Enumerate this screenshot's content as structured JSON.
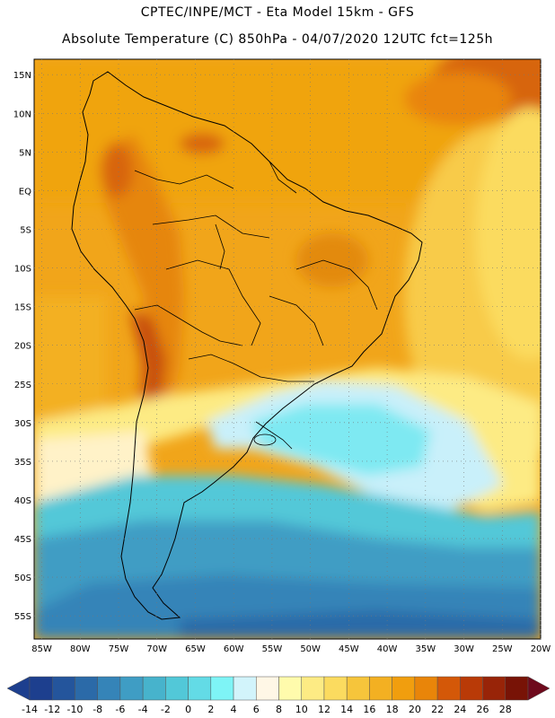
{
  "header": {
    "line1": "CPTEC/INPE/MCT -  Eta Model 15km - GFS",
    "line2": "Absolute Temperature (C) 850hPa - 04/07/2020 12UTC fct=125h"
  },
  "map": {
    "lat_labels": [
      "15N",
      "10N",
      "5N",
      "EQ",
      "5S",
      "10S",
      "15S",
      "20S",
      "25S",
      "30S",
      "35S",
      "40S",
      "45S",
      "50S",
      "55S"
    ],
    "lat_values": [
      15,
      10,
      5,
      0,
      -5,
      -10,
      -15,
      -20,
      -25,
      -30,
      -35,
      -40,
      -45,
      -50,
      -55
    ],
    "lon_labels": [
      "85W",
      "80W",
      "75W",
      "70W",
      "65W",
      "60W",
      "55W",
      "50W",
      "45W",
      "40W",
      "35W",
      "30W",
      "25W",
      "20W"
    ],
    "lon_values": [
      -85,
      -80,
      -75,
      -70,
      -65,
      -60,
      -55,
      -50,
      -45,
      -40,
      -35,
      -30,
      -25,
      -20
    ],
    "lat_range": [
      -58,
      17
    ],
    "lon_range": [
      -86,
      -20
    ],
    "grid": true
  },
  "colorbar": {
    "labels": [
      "-14",
      "-12",
      "-10",
      "-8",
      "-6",
      "-4",
      "-2",
      "0",
      "2",
      "4",
      "6",
      "8",
      "10",
      "12",
      "14",
      "16",
      "18",
      "20",
      "22",
      "24",
      "26",
      "28"
    ],
    "colors": [
      "#1d3f8e",
      "#24559c",
      "#2b6aa8",
      "#3584b8",
      "#3f9dc4",
      "#47b3cc",
      "#52c8d8",
      "#63dbe6",
      "#7ef4f6",
      "#d2f4fb",
      "#fff7e6",
      "#fffbac",
      "#fdeb84",
      "#fbdb5f",
      "#f6c53b",
      "#f3b022",
      "#f19e0e",
      "#e98509",
      "#d45808",
      "#b93a07",
      "#982408",
      "#781306"
    ],
    "end_left": "#1d3f8e",
    "end_right": "#6e0a1c"
  }
}
